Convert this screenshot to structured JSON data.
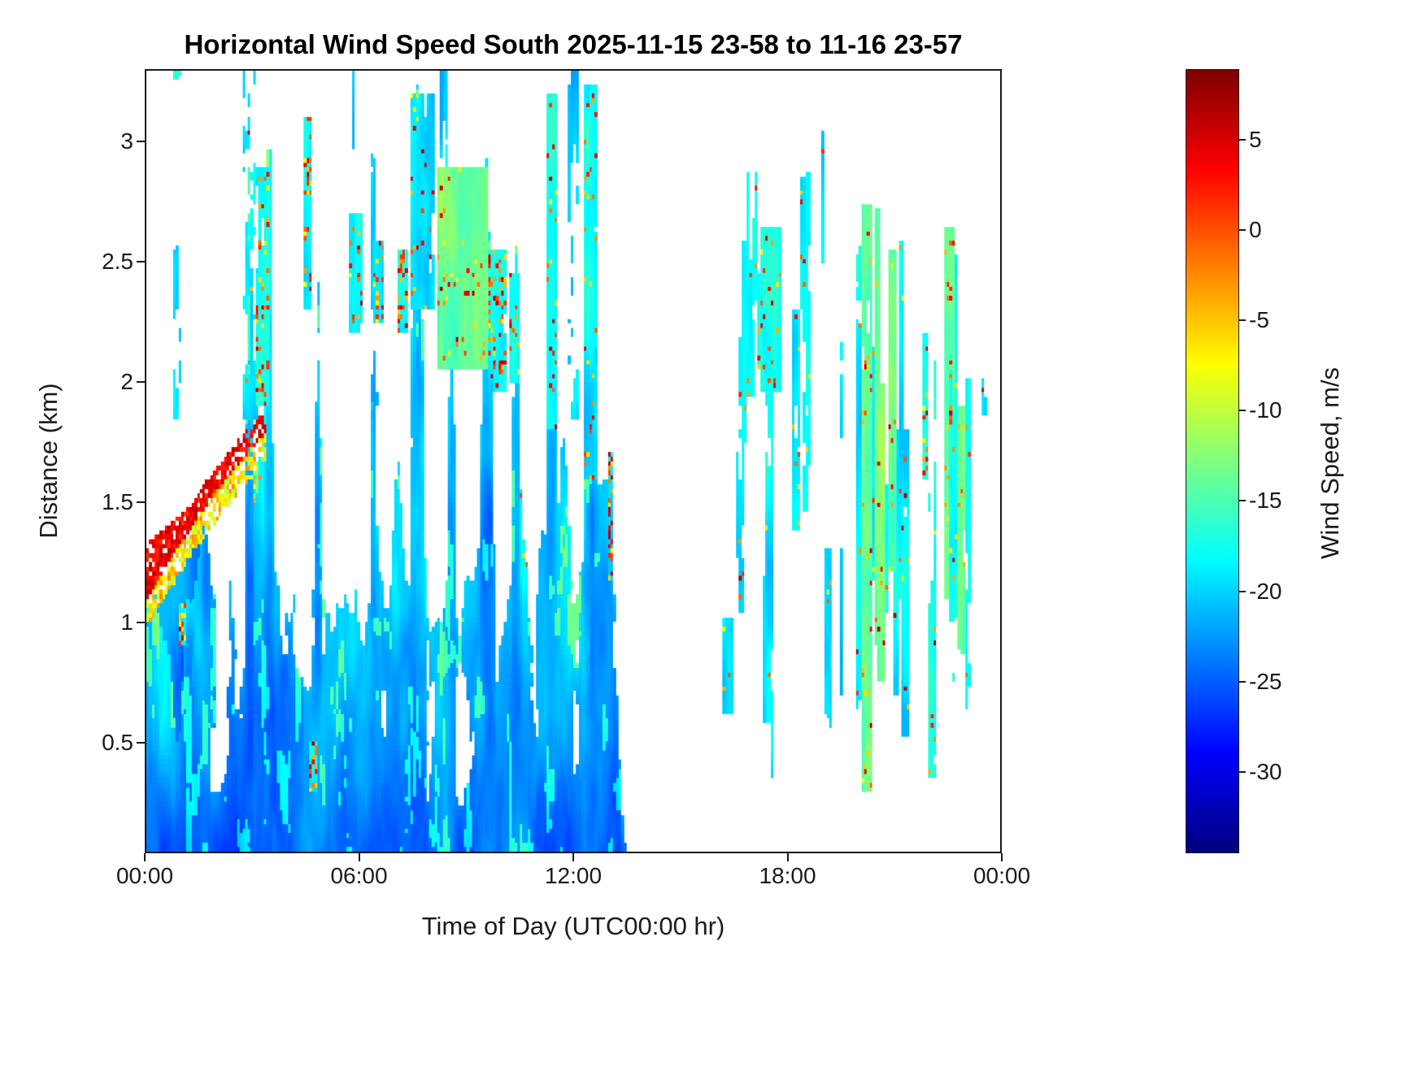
{
  "figure": {
    "title": "Horizontal Wind Speed South 2025-11-15 23-58 to 11-16 23-57",
    "xlabel": "Time of Day (UTC00:00 hr)",
    "ylabel": "Distance (km)",
    "colorbar_label": "Wind Speed, m/s",
    "background_color": "#ffffff",
    "axis_color": "#1a1a1a",
    "no_data_color": "#ffffff"
  },
  "chart_data": {
    "type": "heatmap",
    "title": "Horizontal Wind Speed South 2025-11-15 23-58 to 11-16 23-57",
    "xlabel": "Time of Day (UTC00:00 hr)",
    "ylabel": "Distance (km)",
    "x_range_hours": [
      0,
      24
    ],
    "y_range_km": [
      0.04,
      3.3
    ],
    "grid": false,
    "x_ticks": [
      {
        "hour": 0,
        "label": "00:00"
      },
      {
        "hour": 6,
        "label": "06:00"
      },
      {
        "hour": 12,
        "label": "12:00"
      },
      {
        "hour": 18,
        "label": "18:00"
      },
      {
        "hour": 24,
        "label": "00:00"
      }
    ],
    "y_ticks": [
      {
        "km": 0.5,
        "label": "0.5"
      },
      {
        "km": 1,
        "label": "1"
      },
      {
        "km": 1.5,
        "label": "1.5"
      },
      {
        "km": 2,
        "label": "2"
      },
      {
        "km": 2.5,
        "label": "2.5"
      },
      {
        "km": 3,
        "label": "3"
      }
    ],
    "colorbar": {
      "label": "Wind Speed, m/s",
      "colormap": "jet",
      "vmin": -34.5,
      "vmax": 8.9,
      "ticks": [
        {
          "value": 5,
          "label": "5"
        },
        {
          "value": 0,
          "label": "0"
        },
        {
          "value": -5,
          "label": "-5"
        },
        {
          "value": -10,
          "label": "-10"
        },
        {
          "value": -15,
          "label": "-15"
        },
        {
          "value": -20,
          "label": "-20"
        },
        {
          "value": -25,
          "label": "-25"
        },
        {
          "value": -30,
          "label": "-30"
        }
      ]
    },
    "typical_values_mps": [
      -30,
      -18
    ],
    "extreme_values_mps": [
      -34,
      7
    ],
    "summary": "Sparse lidar time-height curtain. Dense mostly-blue returns (-32 to -20 m/s) from 00:00 to ~13:30 below ~3.3 km; a red high-speed band (+1 to +7 m/s) rises from ~1.1 km at 00:00 to ~1.8 km by 03:00; scattered warm (red/orange/yellow) specks mark plume tops. Clear gap ~13:30-16:30. Intermittent thin vertical streaks (cyan/blue, occasional warm specks, green-yellow cores near 20:15-20:40) from ~16:30 to ~23:30 between ~0.3 and 2.9 km.",
    "features": [
      "Dense boundary-layer returns (blue -32..-22 m/s with cyan speckle) hugging the surface from 00:00 to ~13:20",
      "Red band (+1..+7 m/s) rising from ~1.1 km at 00:00 to ~1.8 km near 03:00 with orange/yellow fringe beneath",
      "Convective plumes to 2.5-3.3 km near 02:50, 03:30, 04:50, 07:30-08:00, 09:30, 11:30, 12:30 with warm edge specks",
      "Isolated column of red/yellow specks near 13:00 at 1.2-1.7 km",
      "No-data (white) gap ~13:30-16:30 and above cloud tops",
      "Sparse vertical streaks 16:30-23:30 between ~0.3 and 2.9 km; tall dense streaks near 20:15 and 20:35; red specks near 17:20, 18:30, 21:50, 22:40"
    ],
    "render_params": {
      "seed": 20251116,
      "noise_seed": 11,
      "nx": 320,
      "ny": 170,
      "right_streak_count": 30,
      "tall_plumes": [
        {
          "x": 1.7,
          "h": 2.3,
          "w": 0.25
        },
        {
          "x": 2.9,
          "h": 3.1,
          "w": 0.15
        },
        {
          "x": 3.45,
          "h": 3.28,
          "w": 0.18
        },
        {
          "x": 4.8,
          "h": 3.15,
          "w": 0.15
        },
        {
          "x": 6.4,
          "h": 2.6,
          "w": 0.2
        },
        {
          "x": 7.6,
          "h": 3.25,
          "w": 0.3
        },
        {
          "x": 8.6,
          "h": 2.6,
          "w": 0.2
        },
        {
          "x": 9.6,
          "h": 3.2,
          "w": 0.25
        },
        {
          "x": 10.4,
          "h": 2.7,
          "w": 0.2
        },
        {
          "x": 11.4,
          "h": 3.25,
          "w": 0.2
        },
        {
          "x": 12.5,
          "h": 3.28,
          "w": 0.22
        },
        {
          "x": 13.1,
          "h": 1.8,
          "w": 0.2
        }
      ],
      "extra_streaks": [
        {
          "xc": 1.0,
          "hw": 0.1,
          "y0": 0.9,
          "y1": 1.08,
          "dn": 0.7,
          "warm": 0.4
        },
        {
          "xc": 3.25,
          "hw": 0.18,
          "y0": 1.9,
          "y1": 2.9,
          "dn": 0.6,
          "warm": 0.18
        },
        {
          "xc": 4.55,
          "hw": 0.12,
          "y0": 2.3,
          "y1": 3.1,
          "dn": 0.5,
          "warm": 0.15
        },
        {
          "xc": 4.7,
          "hw": 0.12,
          "y0": 0.28,
          "y1": 0.5,
          "dn": 0.6,
          "warm": 0.45
        },
        {
          "xc": 5.9,
          "hw": 0.2,
          "y0": 2.2,
          "y1": 2.7,
          "dn": 0.5,
          "warm": 0.12
        },
        {
          "xc": 6.55,
          "hw": 0.15,
          "y0": 2.25,
          "y1": 2.6,
          "dn": 0.45,
          "warm": 0.25
        },
        {
          "xc": 7.2,
          "hw": 0.12,
          "y0": 2.2,
          "y1": 2.55,
          "dn": 0.5,
          "warm": 0.3
        },
        {
          "xc": 7.75,
          "hw": 0.35,
          "y0": 2.3,
          "y1": 3.2,
          "dn": 0.7,
          "warm": 0.05
        },
        {
          "xc": 8.9,
          "hw": 0.7,
          "y0": 2.05,
          "y1": 2.9,
          "dn": 0.75,
          "warm": 0.04
        },
        {
          "xc": 9.85,
          "hw": 0.25,
          "y0": 1.95,
          "y1": 2.55,
          "dn": 0.55,
          "warm": 0.22
        },
        {
          "xc": 10.35,
          "hw": 0.15,
          "y0": 2.0,
          "y1": 2.45,
          "dn": 0.5,
          "warm": 0.12
        },
        {
          "xc": 11.4,
          "hw": 0.18,
          "y0": 1.8,
          "y1": 3.2,
          "dn": 0.6,
          "warm": 0.08
        },
        {
          "xc": 12.5,
          "hw": 0.2,
          "y0": 1.6,
          "y1": 3.25,
          "dn": 0.65,
          "warm": 0.1
        },
        {
          "xc": 13.05,
          "hw": 0.09,
          "y0": 1.18,
          "y1": 1.7,
          "dn": 0.6,
          "warm": 0.35
        },
        {
          "xc": 17.25,
          "hw": 0.06,
          "y0": 2.05,
          "y1": 2.45,
          "dn": 0.5,
          "warm": 0.3
        },
        {
          "xc": 17.55,
          "hw": 0.28,
          "y0": 1.95,
          "y1": 2.65,
          "dn": 0.6,
          "warm": 0.06
        },
        {
          "xc": 18.45,
          "hw": 0.1,
          "y0": 2.3,
          "y1": 2.85,
          "dn": 0.55,
          "warm": 0.12
        },
        {
          "xc": 19.0,
          "hw": 0.05,
          "y0": 2.5,
          "y1": 3.05,
          "dn": 0.45,
          "warm": 0.01
        },
        {
          "xc": 20.25,
          "hw": 0.13,
          "y0": 0.28,
          "y1": 2.75,
          "dn": 0.9,
          "warm": 0.03
        },
        {
          "xc": 20.55,
          "hw": 0.09,
          "y0": 0.9,
          "y1": 2.72,
          "dn": 0.85,
          "warm": 0.03
        },
        {
          "xc": 21.2,
          "hw": 0.08,
          "y0": 1.1,
          "y1": 2.6,
          "dn": 0.7,
          "warm": 0.05
        },
        {
          "xc": 21.9,
          "hw": 0.07,
          "y0": 1.6,
          "y1": 2.2,
          "dn": 0.5,
          "warm": 0.15
        },
        {
          "xc": 22.15,
          "hw": 0.06,
          "y0": 0.45,
          "y1": 2.1,
          "dn": 0.6,
          "warm": 0.05
        },
        {
          "xc": 22.6,
          "hw": 0.05,
          "y0": 1.75,
          "y1": 2.05,
          "dn": 0.45,
          "warm": 0.2
        },
        {
          "xc": 23.55,
          "hw": 0.04,
          "y0": 1.86,
          "y1": 2.02,
          "dn": 0.45,
          "warm": 0.01
        }
      ]
    }
  }
}
